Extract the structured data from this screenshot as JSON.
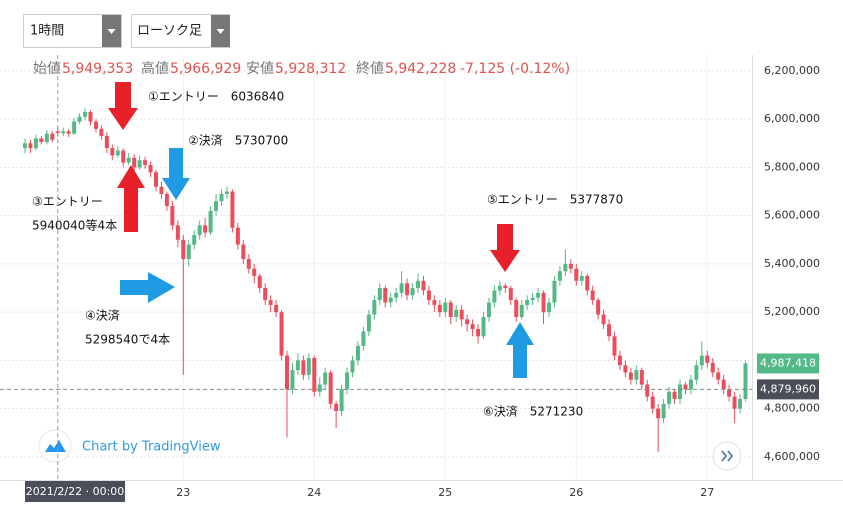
{
  "toolbar": {
    "interval": "1時間",
    "chart_style": "ローソク足"
  },
  "header": {
    "items": [
      {
        "label": "始値",
        "value": "5,949,353"
      },
      {
        "label": "高値",
        "value": "5,966,929"
      },
      {
        "label": "安値",
        "value": "5,928,312"
      },
      {
        "label": "終値",
        "value": "5,942,228"
      }
    ],
    "change": "-7,125 (-0.12%)"
  },
  "watermark": "Chart by TradingView",
  "annotations": [
    "①エントリー　6036840",
    "②決済　5730700",
    "③エントリー",
    "5940040等4本",
    "④決済",
    "5298540で4本",
    "⑤エントリー　5377870",
    "⑥決済　5271230"
  ],
  "chart_data": {
    "type": "candlestick",
    "up_color": "#53b987",
    "down_color": "#eb4d5c",
    "grid": true,
    "ylim": [
      4525000,
      6266000
    ],
    "yticks": [
      {
        "value": 4600000,
        "label": "4,600,000"
      },
      {
        "value": 4800000,
        "label": "4,800,000"
      },
      {
        "value": 5000000,
        "label": "5,000,000"
      },
      {
        "value": 5200000,
        "label": "5,200,000"
      },
      {
        "value": 5400000,
        "label": "5,400,000"
      },
      {
        "value": 5600000,
        "label": "5,600,000"
      },
      {
        "value": 5800000,
        "label": "5,800,000"
      },
      {
        "value": 6000000,
        "label": "6,000,000"
      },
      {
        "value": 6200000,
        "label": "6,200,000"
      }
    ],
    "xticks": [
      {
        "value": 29,
        "label": "23"
      },
      {
        "value": 53,
        "label": "24"
      },
      {
        "value": 77,
        "label": "25"
      },
      {
        "value": 101,
        "label": "26"
      },
      {
        "value": 125,
        "label": "27"
      }
    ],
    "crosshair": {
      "value": 6,
      "label": "2021/2/22 · 00:00"
    },
    "last_price": {
      "value": 4987418,
      "label": "4,987,418"
    },
    "price_line": {
      "value": 4879960,
      "label": "4,879,960"
    },
    "ohlc": [
      [
        5880000,
        5920000,
        5860000,
        5900000
      ],
      [
        5900000,
        5915000,
        5860000,
        5880000
      ],
      [
        5880000,
        5935000,
        5870000,
        5920000
      ],
      [
        5920000,
        5930000,
        5895000,
        5905000
      ],
      [
        5905000,
        5955000,
        5895000,
        5940000
      ],
      [
        5940000,
        5950000,
        5905000,
        5915000
      ],
      [
        5949353,
        5966929,
        5928312,
        5942228
      ],
      [
        5942000,
        5965000,
        5930000,
        5950000
      ],
      [
        5950000,
        5960000,
        5925000,
        5940000
      ],
      [
        5940000,
        6005000,
        5935000,
        5990000
      ],
      [
        5990000,
        6025000,
        5980000,
        6010000
      ],
      [
        6010000,
        6045000,
        5995000,
        6030000
      ],
      [
        6030000,
        6037000,
        5975000,
        5990000
      ],
      [
        5990000,
        6000000,
        5945000,
        5960000
      ],
      [
        5960000,
        5975000,
        5915000,
        5930000
      ],
      [
        5930000,
        5945000,
        5860000,
        5880000
      ],
      [
        5880000,
        5895000,
        5830000,
        5850000
      ],
      [
        5850000,
        5890000,
        5840000,
        5870000
      ],
      [
        5870000,
        5880000,
        5800000,
        5820000
      ],
      [
        5820000,
        5860000,
        5810000,
        5840000
      ],
      [
        5840000,
        5855000,
        5780000,
        5800000
      ],
      [
        5800000,
        5850000,
        5790000,
        5830000
      ],
      [
        5830000,
        5845000,
        5795000,
        5810000
      ],
      [
        5810000,
        5825000,
        5760000,
        5780000
      ],
      [
        5780000,
        5790000,
        5700000,
        5720000
      ],
      [
        5720000,
        5740000,
        5670000,
        5690000
      ],
      [
        5690000,
        5700000,
        5620000,
        5640000
      ],
      [
        5640000,
        5660000,
        5540000,
        5560000
      ],
      [
        5560000,
        5580000,
        5470000,
        5500000
      ],
      [
        5500000,
        5520000,
        4940000,
        5420000
      ],
      [
        5420000,
        5500000,
        5390000,
        5480000
      ],
      [
        5480000,
        5540000,
        5460000,
        5520000
      ],
      [
        5520000,
        5580000,
        5500000,
        5560000
      ],
      [
        5560000,
        5590000,
        5510000,
        5530000
      ],
      [
        5530000,
        5640000,
        5520000,
        5620000
      ],
      [
        5620000,
        5690000,
        5600000,
        5660000
      ],
      [
        5660000,
        5710000,
        5640000,
        5690000
      ],
      [
        5690000,
        5720000,
        5670000,
        5700000
      ],
      [
        5700000,
        5710000,
        5530000,
        5550000
      ],
      [
        5550000,
        5570000,
        5460000,
        5480000
      ],
      [
        5480000,
        5500000,
        5400000,
        5420000
      ],
      [
        5420000,
        5440000,
        5360000,
        5380000
      ],
      [
        5380000,
        5400000,
        5320000,
        5350000
      ],
      [
        5350000,
        5360000,
        5280000,
        5300000
      ],
      [
        5300000,
        5320000,
        5230000,
        5250000
      ],
      [
        5250000,
        5270000,
        5200000,
        5230000
      ],
      [
        5230000,
        5250000,
        5180000,
        5200000
      ],
      [
        5200000,
        5210000,
        5000000,
        5020000
      ],
      [
        5020000,
        5040000,
        4680000,
        4880000
      ],
      [
        4880000,
        4990000,
        4860000,
        4960000
      ],
      [
        4960000,
        5030000,
        4940000,
        5000000
      ],
      [
        5000000,
        5020000,
        4920000,
        4940000
      ],
      [
        4940000,
        5030000,
        4920000,
        5010000
      ],
      [
        5010000,
        5020000,
        4850000,
        4870000
      ],
      [
        4870000,
        4930000,
        4850000,
        4900000
      ],
      [
        4900000,
        4970000,
        4880000,
        4950000
      ],
      [
        4950000,
        4960000,
        4800000,
        4820000
      ],
      [
        4820000,
        4830000,
        4720000,
        4790000
      ],
      [
        4790000,
        4900000,
        4770000,
        4880000
      ],
      [
        4880000,
        4970000,
        4860000,
        4950000
      ],
      [
        4950000,
        5020000,
        4930000,
        5000000
      ],
      [
        5000000,
        5080000,
        4980000,
        5060000
      ],
      [
        5060000,
        5140000,
        5040000,
        5120000
      ],
      [
        5120000,
        5210000,
        5100000,
        5190000
      ],
      [
        5190000,
        5270000,
        5170000,
        5250000
      ],
      [
        5250000,
        5320000,
        5230000,
        5300000
      ],
      [
        5300000,
        5310000,
        5220000,
        5240000
      ],
      [
        5240000,
        5280000,
        5220000,
        5260000
      ],
      [
        5260000,
        5300000,
        5240000,
        5280000
      ],
      [
        5280000,
        5370000,
        5260000,
        5320000
      ],
      [
        5320000,
        5340000,
        5250000,
        5270000
      ],
      [
        5270000,
        5320000,
        5250000,
        5300000
      ],
      [
        5300000,
        5360000,
        5280000,
        5330000
      ],
      [
        5330000,
        5350000,
        5270000,
        5290000
      ],
      [
        5290000,
        5310000,
        5230000,
        5250000
      ],
      [
        5250000,
        5270000,
        5200000,
        5230000
      ],
      [
        5230000,
        5250000,
        5180000,
        5200000
      ],
      [
        5200000,
        5260000,
        5180000,
        5240000
      ],
      [
        5240000,
        5250000,
        5150000,
        5180000
      ],
      [
        5180000,
        5230000,
        5160000,
        5210000
      ],
      [
        5210000,
        5230000,
        5140000,
        5170000
      ],
      [
        5170000,
        5190000,
        5120000,
        5150000
      ],
      [
        5150000,
        5170000,
        5100000,
        5130000
      ],
      [
        5130000,
        5150000,
        5070000,
        5100000
      ],
      [
        5100000,
        5200000,
        5090000,
        5180000
      ],
      [
        5180000,
        5260000,
        5160000,
        5240000
      ],
      [
        5240000,
        5310000,
        5220000,
        5290000
      ],
      [
        5290000,
        5330000,
        5270000,
        5310000
      ],
      [
        5310000,
        5320000,
        5280000,
        5300000
      ],
      [
        5300000,
        5310000,
        5230000,
        5250000
      ],
      [
        5250000,
        5260000,
        5160000,
        5180000
      ],
      [
        5180000,
        5250000,
        5170000,
        5230000
      ],
      [
        5230000,
        5270000,
        5210000,
        5250000
      ],
      [
        5250000,
        5280000,
        5230000,
        5260000
      ],
      [
        5260000,
        5300000,
        5240000,
        5280000
      ],
      [
        5280000,
        5290000,
        5150000,
        5200000
      ],
      [
        5200000,
        5260000,
        5180000,
        5240000
      ],
      [
        5240000,
        5350000,
        5220000,
        5330000
      ],
      [
        5330000,
        5390000,
        5310000,
        5370000
      ],
      [
        5370000,
        5460000,
        5350000,
        5400000
      ],
      [
        5400000,
        5420000,
        5360000,
        5380000
      ],
      [
        5380000,
        5400000,
        5310000,
        5330000
      ],
      [
        5330000,
        5370000,
        5310000,
        5350000
      ],
      [
        5350000,
        5360000,
        5270000,
        5290000
      ],
      [
        5290000,
        5310000,
        5230000,
        5250000
      ],
      [
        5250000,
        5260000,
        5170000,
        5190000
      ],
      [
        5190000,
        5210000,
        5130000,
        5150000
      ],
      [
        5150000,
        5170000,
        5080000,
        5100000
      ],
      [
        5100000,
        5120000,
        5000000,
        5020000
      ],
      [
        5020000,
        5040000,
        4960000,
        4980000
      ],
      [
        4980000,
        5000000,
        4930000,
        4950000
      ],
      [
        4950000,
        4970000,
        4900000,
        4920000
      ],
      [
        4920000,
        4980000,
        4900000,
        4960000
      ],
      [
        4960000,
        4970000,
        4880000,
        4900000
      ],
      [
        4900000,
        4920000,
        4830000,
        4850000
      ],
      [
        4850000,
        4870000,
        4780000,
        4800000
      ],
      [
        4800000,
        4820000,
        4620000,
        4760000
      ],
      [
        4760000,
        4840000,
        4740000,
        4820000
      ],
      [
        4820000,
        4890000,
        4800000,
        4870000
      ],
      [
        4870000,
        4880000,
        4820000,
        4840000
      ],
      [
        4840000,
        4920000,
        4820000,
        4900000
      ],
      [
        4900000,
        4910000,
        4860000,
        4880000
      ],
      [
        4880000,
        4940000,
        4860000,
        4920000
      ],
      [
        4920000,
        5000000,
        4900000,
        4980000
      ],
      [
        4980000,
        5080000,
        4960000,
        5020000
      ],
      [
        5020000,
        5040000,
        4970000,
        4990000
      ],
      [
        4990000,
        5010000,
        4930000,
        4950000
      ],
      [
        4950000,
        4970000,
        4900000,
        4920000
      ],
      [
        4920000,
        4940000,
        4860000,
        4880000
      ],
      [
        4880000,
        4900000,
        4830000,
        4850000
      ],
      [
        4850000,
        4870000,
        4740000,
        4800000
      ],
      [
        4800000,
        4860000,
        4780000,
        4840000
      ],
      [
        4840000,
        5000000,
        4830000,
        4987418
      ]
    ]
  }
}
